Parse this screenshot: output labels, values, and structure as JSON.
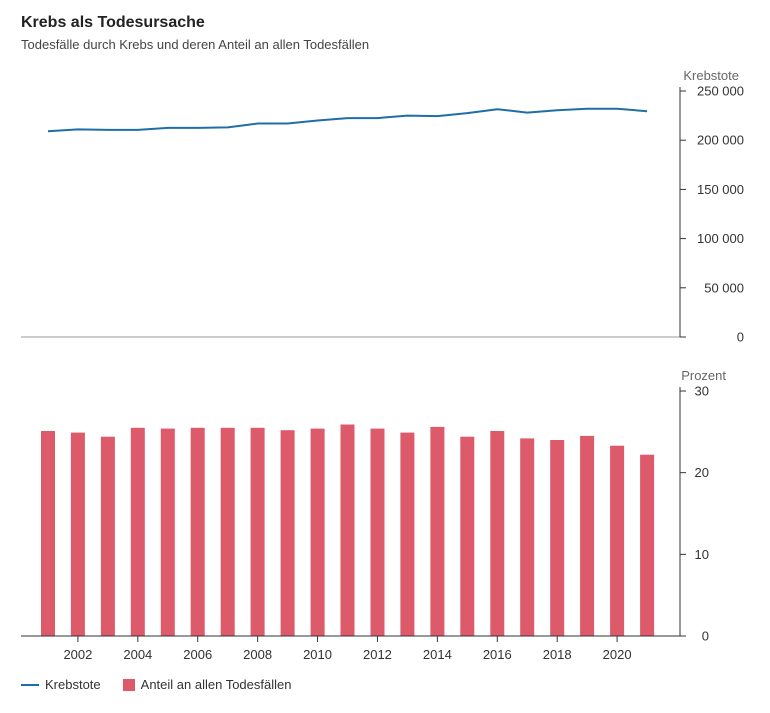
{
  "title": "Krebs als Todesursache",
  "subtitle": "Todesfälle durch Krebs und deren Anteil an allen Todesfällen",
  "colors": {
    "line": "#1f6fa6",
    "bar": "#dc5a6a",
    "axis": "#333333"
  },
  "chart_data": [
    {
      "type": "line",
      "ylabel": "Krebstote",
      "ylim": [
        0,
        250000
      ],
      "yticks": [
        0,
        50000,
        100000,
        150000,
        200000,
        250000
      ],
      "ytick_labels": [
        "0",
        "50 000",
        "100 000",
        "150 000",
        "200 000",
        "250 000"
      ],
      "grid": false,
      "series": [
        {
          "name": "Krebstote",
          "x": [
            2001,
            2002,
            2003,
            2004,
            2005,
            2006,
            2007,
            2008,
            2009,
            2010,
            2011,
            2012,
            2013,
            2014,
            2015,
            2016,
            2017,
            2018,
            2019,
            2020,
            2021
          ],
          "values": [
            209000,
            211000,
            210500,
            210500,
            212500,
            212500,
            213000,
            217000,
            217000,
            220000,
            222500,
            222500,
            225000,
            224500,
            227500,
            231500,
            228000,
            230500,
            232000,
            232000,
            229500
          ]
        }
      ]
    },
    {
      "type": "bar",
      "ylabel": "Prozent",
      "ylim": [
        0,
        30
      ],
      "yticks": [
        0,
        10,
        20,
        30
      ],
      "ytick_labels": [
        "0",
        "10",
        "20",
        "30"
      ],
      "grid": false,
      "x": [
        2001,
        2002,
        2003,
        2004,
        2005,
        2006,
        2007,
        2008,
        2009,
        2010,
        2011,
        2012,
        2013,
        2014,
        2015,
        2016,
        2017,
        2018,
        2019,
        2020,
        2021
      ],
      "xtick_labels": [
        "2002",
        "2004",
        "2006",
        "2008",
        "2010",
        "2012",
        "2014",
        "2016",
        "2018",
        "2020"
      ],
      "xtick_values": [
        2002,
        2004,
        2006,
        2008,
        2010,
        2012,
        2014,
        2016,
        2018,
        2020
      ],
      "series": [
        {
          "name": "Anteil an allen Todesfällen",
          "values": [
            25.1,
            24.9,
            24.4,
            25.5,
            25.4,
            25.5,
            25.5,
            25.5,
            25.2,
            25.4,
            25.9,
            25.4,
            24.9,
            25.6,
            24.4,
            25.1,
            24.2,
            24.0,
            24.5,
            23.3,
            22.2
          ]
        }
      ]
    }
  ],
  "legend": {
    "items": [
      {
        "label": "Krebstote",
        "kind": "line"
      },
      {
        "label": "Anteil an allen Todesfällen",
        "kind": "bar"
      }
    ]
  }
}
